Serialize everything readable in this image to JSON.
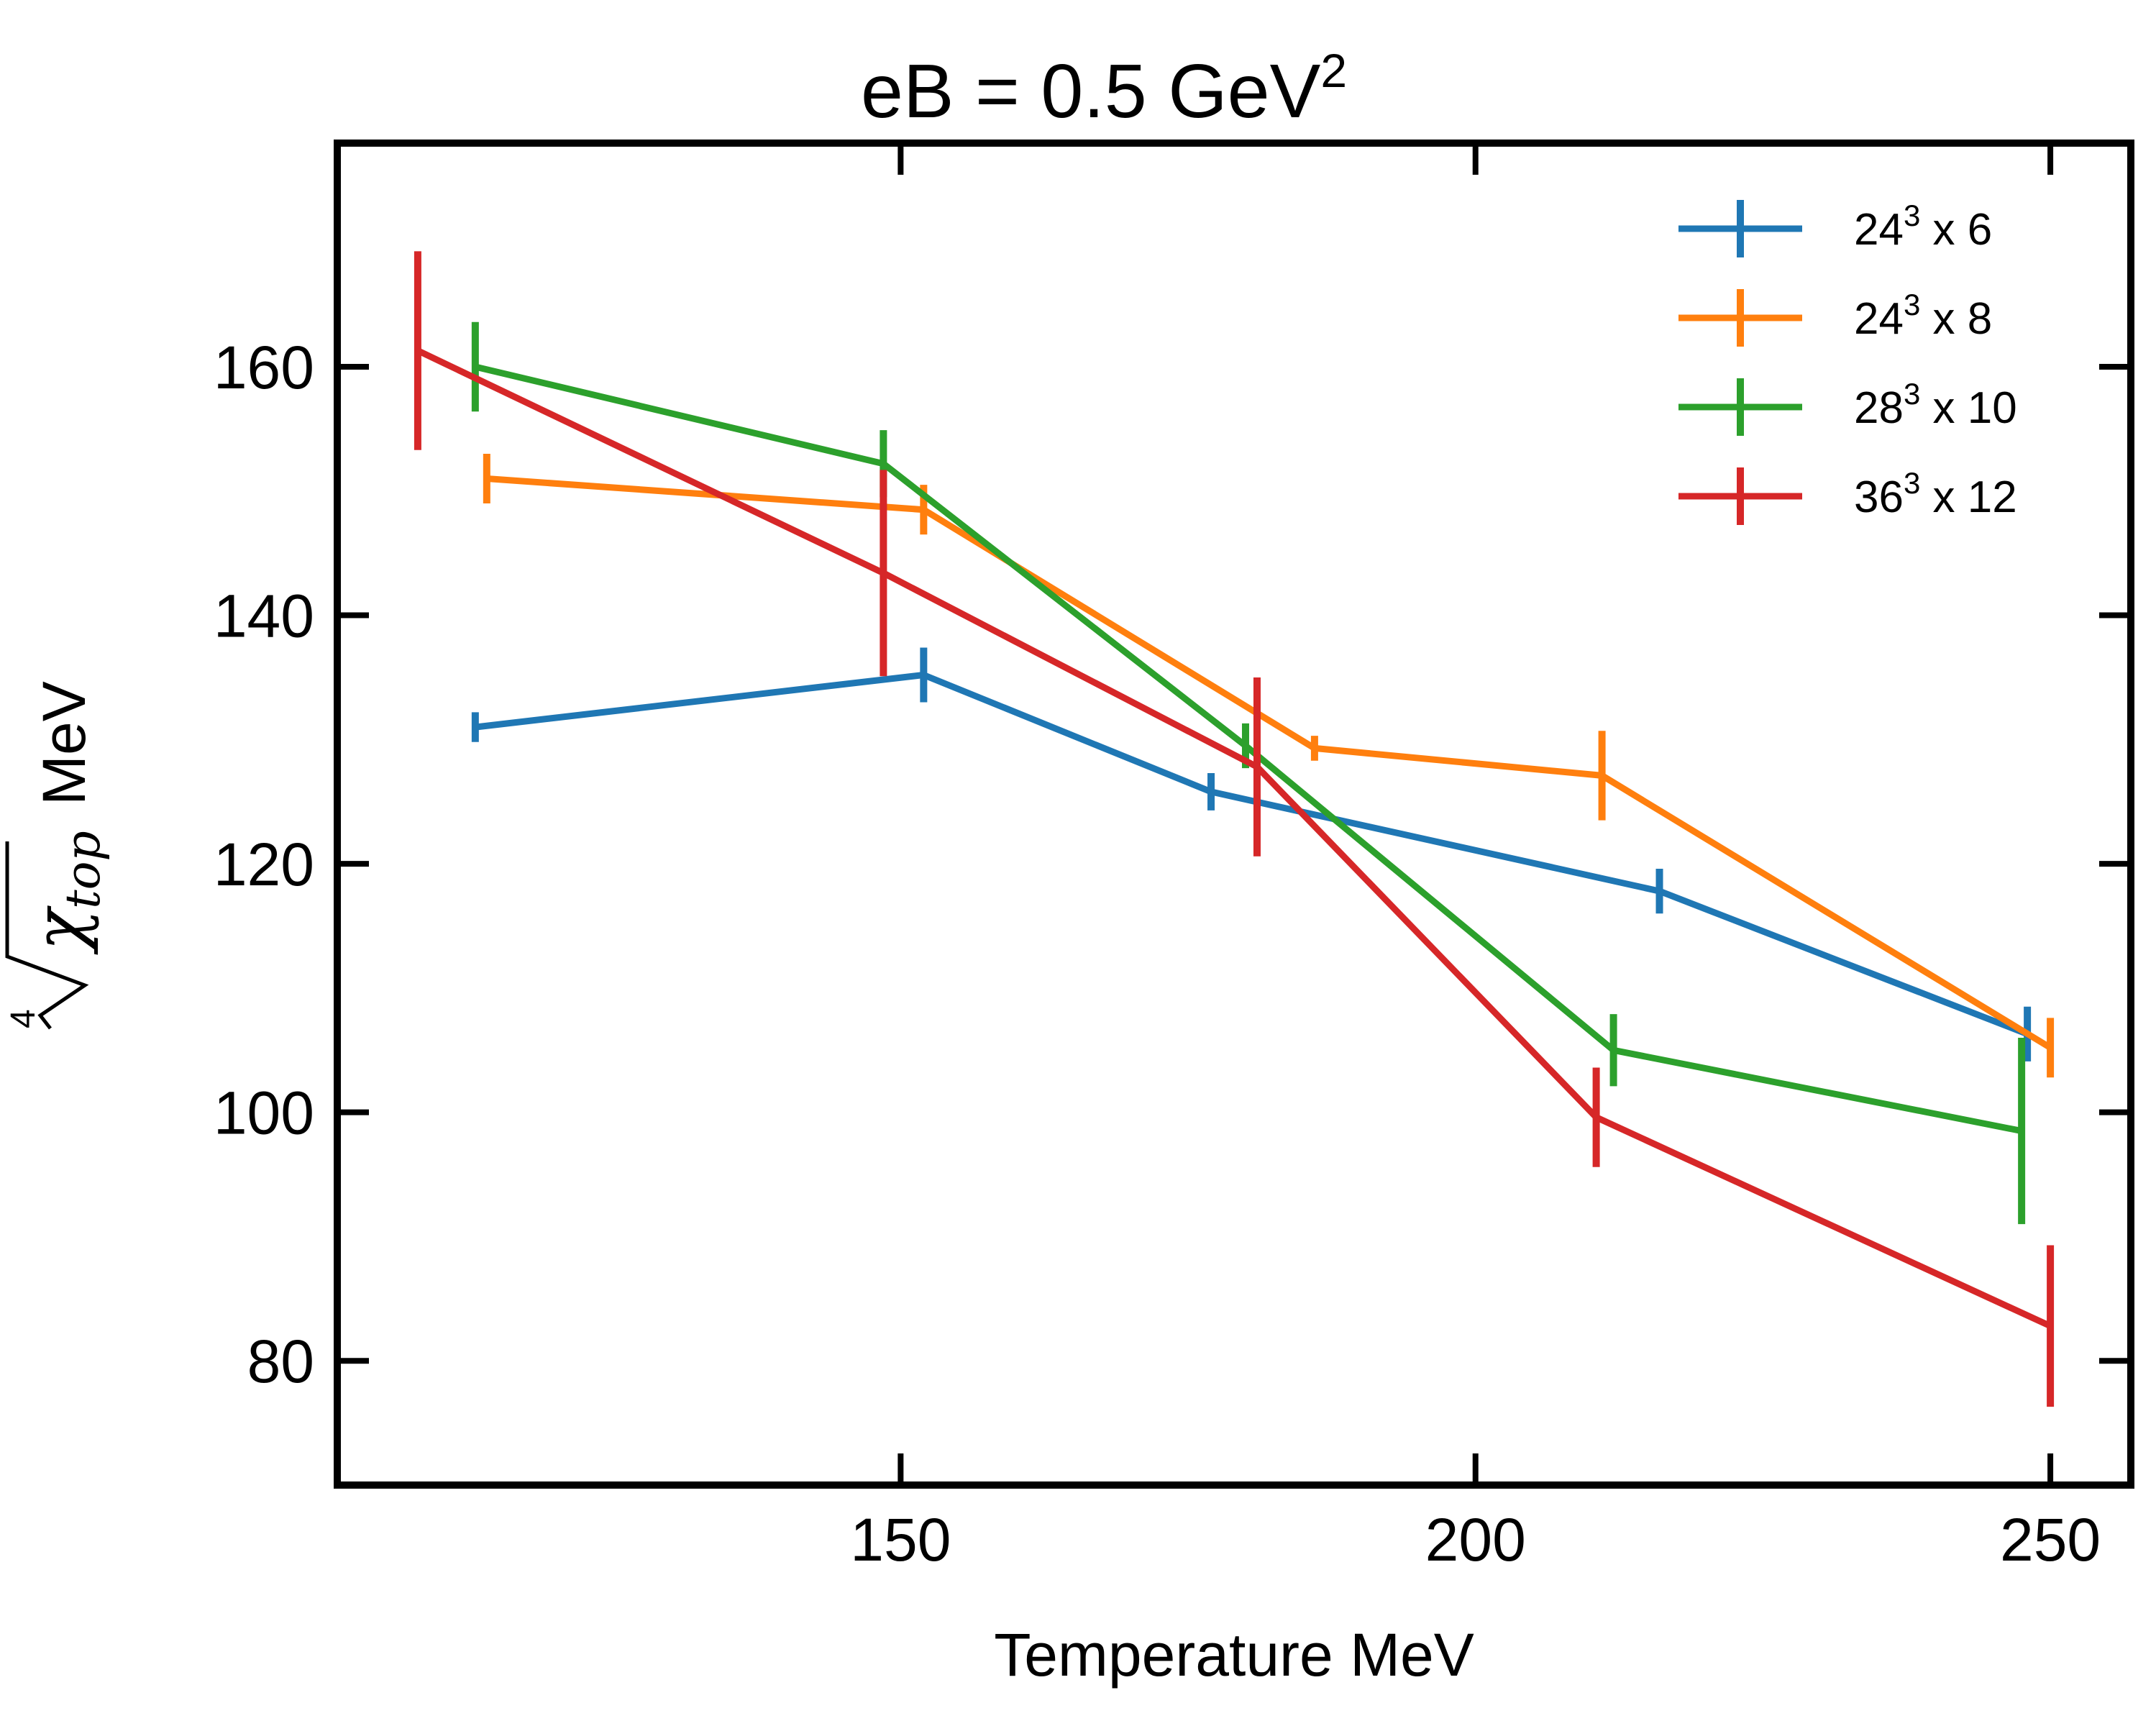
{
  "chart_data": {
    "type": "line",
    "title": "eB  = 0.5 GeV",
    "title_sup": "2",
    "xlabel": "Temperature MeV",
    "ylabel": "MeV",
    "ylabel_math": {
      "root_index": "4",
      "symbol": "χ",
      "subscript": "top"
    },
    "xlim": [
      101,
      257
    ],
    "ylim": [
      70,
      178
    ],
    "xticks": [
      150,
      200,
      250
    ],
    "yticks": [
      80,
      100,
      120,
      140,
      160
    ],
    "legend_position": "top-right",
    "series": [
      {
        "name": "24",
        "sup": "3",
        "suffix": " x 6",
        "color": "#1f77b4",
        "x": [
          113,
          152,
          177,
          216,
          248
        ],
        "y": [
          131,
          135.2,
          125.8,
          117.8,
          106.3
        ],
        "err": [
          1.2,
          2.2,
          1.5,
          1.8,
          2.2
        ]
      },
      {
        "name": "24",
        "sup": "3",
        "suffix": " x 8",
        "color": "#ff7f0e",
        "x": [
          114,
          152,
          186,
          211,
          250
        ],
        "y": [
          151,
          148.5,
          129.3,
          127.1,
          105.2
        ],
        "err": [
          2.0,
          2.0,
          1.0,
          3.6,
          2.4
        ]
      },
      {
        "name": "28",
        "sup": "3",
        "suffix": " x 10",
        "color": "#2ca02c",
        "x": [
          113,
          148.5,
          180,
          212,
          247.5
        ],
        "y": [
          160,
          152.2,
          129.5,
          105,
          98.5
        ],
        "err": [
          3.6,
          2.7,
          1.8,
          2.9,
          7.5
        ]
      },
      {
        "name": "36",
        "sup": "3",
        "suffix": " x 12",
        "color": "#d62728",
        "x": [
          108,
          148.5,
          181,
          210.5,
          250
        ],
        "y": [
          161.3,
          143.4,
          127.8,
          99.6,
          82.8
        ],
        "err": [
          8.0,
          8.3,
          7.2,
          4.0,
          6.5
        ]
      }
    ]
  }
}
